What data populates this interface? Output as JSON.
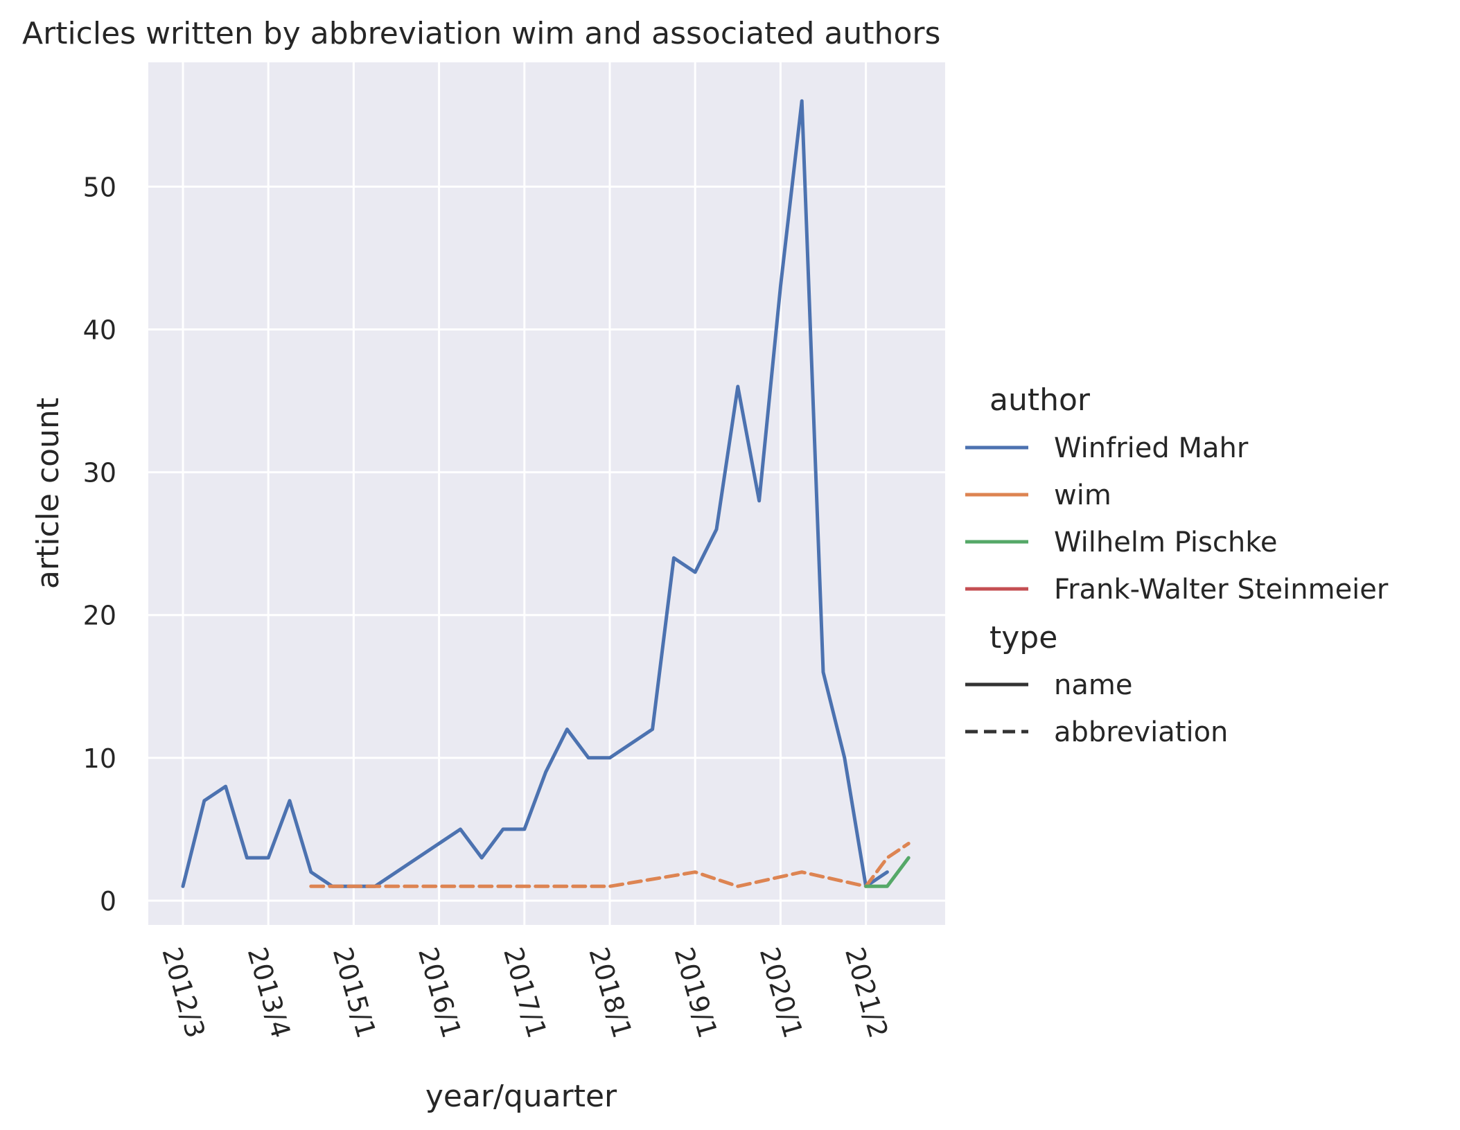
{
  "chart_data": {
    "type": "line",
    "title": "Articles written by abbreviation wim and associated authors",
    "xlabel": "year/quarter",
    "ylabel": "article count",
    "x_ticks": [
      "2012/3",
      "2013/4",
      "2015/1",
      "2016/1",
      "2017/1",
      "2018/1",
      "2019/1",
      "2020/1",
      "2021/2"
    ],
    "y_ticks": [
      0,
      10,
      20,
      30,
      40,
      50
    ],
    "ylim": [
      -1.7,
      58.7
    ],
    "x_count": 35,
    "grid": true,
    "background": "#eaeaf2",
    "legend_position": "right",
    "legend": {
      "author_title": "author",
      "type_title": "type",
      "authors": [
        {
          "name": "Winfried Mahr",
          "color": "#4c72b0"
        },
        {
          "name": "wim",
          "color": "#dd8452"
        },
        {
          "name": "Wilhelm Pischke",
          "color": "#55a868"
        },
        {
          "name": "Frank-Walter Steinmeier",
          "color": "#c44e52"
        }
      ],
      "types": [
        {
          "name": "name",
          "dash": "solid"
        },
        {
          "name": "abbreviation",
          "dash": "dashed"
        }
      ]
    },
    "series": [
      {
        "author": "Winfried Mahr",
        "type": "name",
        "color": "#4c72b0",
        "dash": "solid",
        "points": [
          [
            0,
            1
          ],
          [
            1,
            7
          ],
          [
            2,
            8
          ],
          [
            3,
            3
          ],
          [
            4,
            3
          ],
          [
            5,
            7
          ],
          [
            6,
            2
          ],
          [
            7,
            1
          ],
          [
            8,
            1
          ],
          [
            9,
            1
          ],
          [
            13,
            5
          ],
          [
            14,
            3
          ],
          [
            15,
            5
          ],
          [
            16,
            5
          ],
          [
            17,
            9
          ],
          [
            18,
            12
          ],
          [
            19,
            10
          ],
          [
            20,
            10
          ],
          [
            22,
            12
          ],
          [
            23,
            24
          ],
          [
            24,
            23
          ],
          [
            25,
            26
          ],
          [
            26,
            36
          ],
          [
            27,
            28
          ],
          [
            28,
            43
          ],
          [
            29,
            56
          ],
          [
            30,
            16
          ],
          [
            31,
            10
          ],
          [
            32,
            1
          ],
          [
            33,
            2
          ]
        ]
      },
      {
        "author": "wim",
        "type": "abbreviation",
        "color": "#dd8452",
        "dash": "dashed",
        "points": [
          [
            6,
            1
          ],
          [
            7,
            1
          ],
          [
            8,
            1
          ],
          [
            9,
            1
          ],
          [
            10,
            1
          ],
          [
            11,
            1
          ],
          [
            12,
            1
          ],
          [
            13,
            1
          ],
          [
            14,
            1
          ],
          [
            15,
            1
          ],
          [
            16,
            1
          ],
          [
            17,
            1
          ],
          [
            18,
            1
          ],
          [
            19,
            1
          ],
          [
            20,
            1
          ],
          [
            24,
            2
          ],
          [
            26,
            1
          ],
          [
            29,
            2
          ],
          [
            32,
            1
          ],
          [
            33,
            3
          ],
          [
            34,
            4
          ]
        ]
      },
      {
        "author": "Wilhelm Pischke",
        "type": "name",
        "color": "#55a868",
        "dash": "solid",
        "points": [
          [
            32,
            1
          ],
          [
            33,
            1
          ],
          [
            34,
            3
          ]
        ]
      },
      {
        "author": "Frank-Walter Steinmeier",
        "type": "name",
        "color": "#c44e52",
        "dash": "solid",
        "points": []
      }
    ]
  }
}
